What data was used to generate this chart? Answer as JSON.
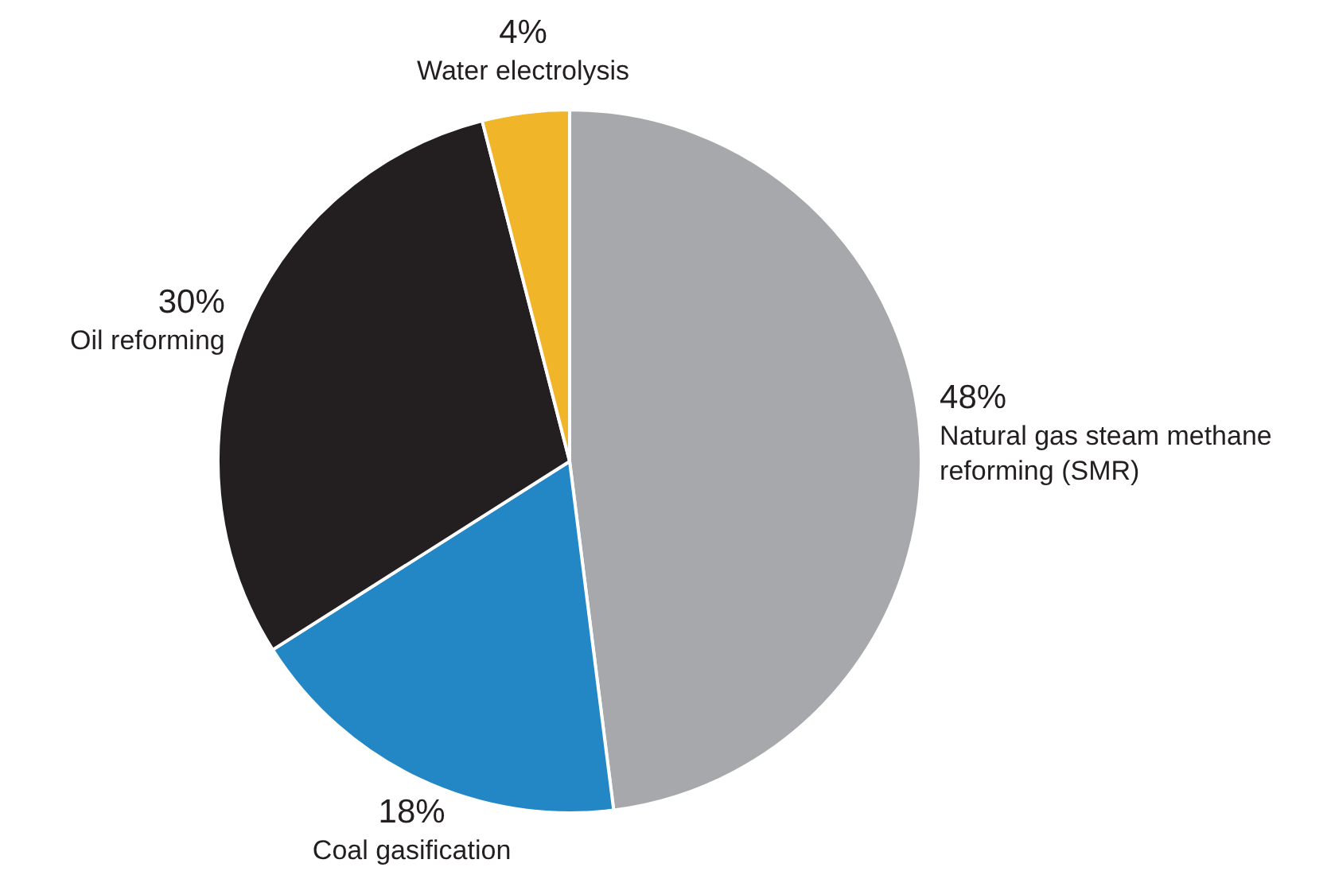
{
  "chart_data": {
    "type": "pie",
    "categories": [
      "Natural gas steam methane reforming (SMR)",
      "Coal gasification",
      "Oil reforming",
      "Water electrolysis"
    ],
    "values": [
      48,
      18,
      30,
      4
    ],
    "value_labels": [
      "48%",
      "18%",
      "30%",
      "4%"
    ],
    "colors": [
      "#a7a8ab",
      "#2287c4",
      "#231f20",
      "#f0b528"
    ],
    "legend": false
  }
}
